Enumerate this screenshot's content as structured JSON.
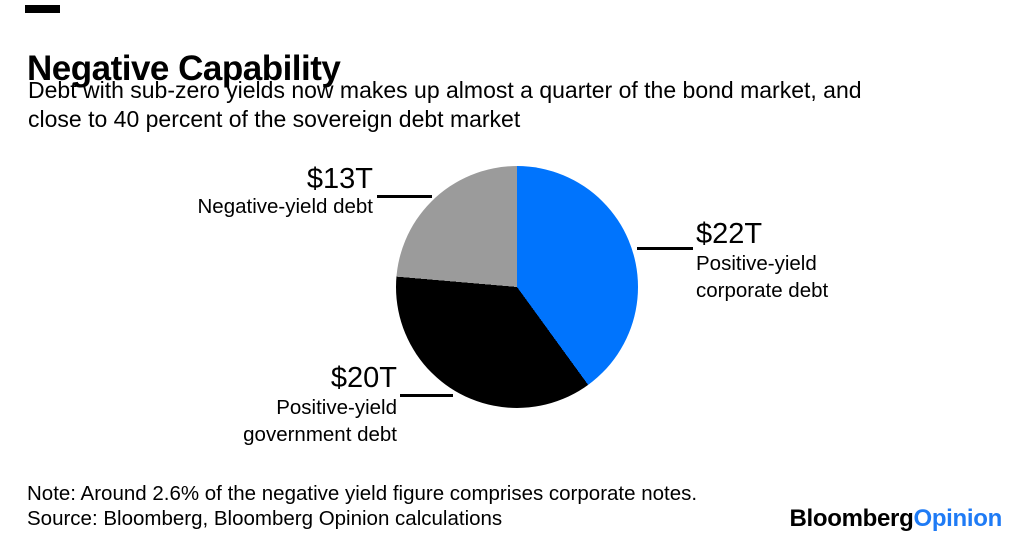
{
  "header": {
    "title": "Negative Capability",
    "subtitle_line1": "Debt with sub-zero yields now makes up almost a quarter of the bond market, and",
    "subtitle_line2": "close to 40 percent of the sovereign debt market"
  },
  "chart_data": {
    "type": "pie",
    "title": "Negative Capability",
    "subtitle": "Debt with sub-zero yields now makes up almost a quarter of the bond market, and close to 40 percent of the sovereign debt market",
    "start_angle_deg": 0,
    "direction": "clockwise",
    "legend": "none",
    "slices": [
      {
        "name": "Positive-yield corporate debt",
        "value": 22,
        "value_label": "$22T",
        "label_lines": [
          "Positive-yield",
          "corporate debt"
        ],
        "color": "#0074fd"
      },
      {
        "name": "Positive-yield government debt",
        "value": 20,
        "value_label": "$20T",
        "label_lines": [
          "Positive-yield",
          "government debt"
        ],
        "color": "#000000"
      },
      {
        "name": "Negative-yield debt",
        "value": 13,
        "value_label": "$13T",
        "label_lines": [
          "Negative-yield debt"
        ],
        "color": "#9b9b9b"
      }
    ]
  },
  "footer": {
    "note": "Note: Around 2.6% of the negative yield figure comprises corporate notes.",
    "source": "Source: Bloomberg, Bloomberg Opinion calculations",
    "logo": {
      "bloomberg": "Bloomberg",
      "opinion": "Opinion",
      "opinion_color": "#1f7bf5"
    }
  }
}
